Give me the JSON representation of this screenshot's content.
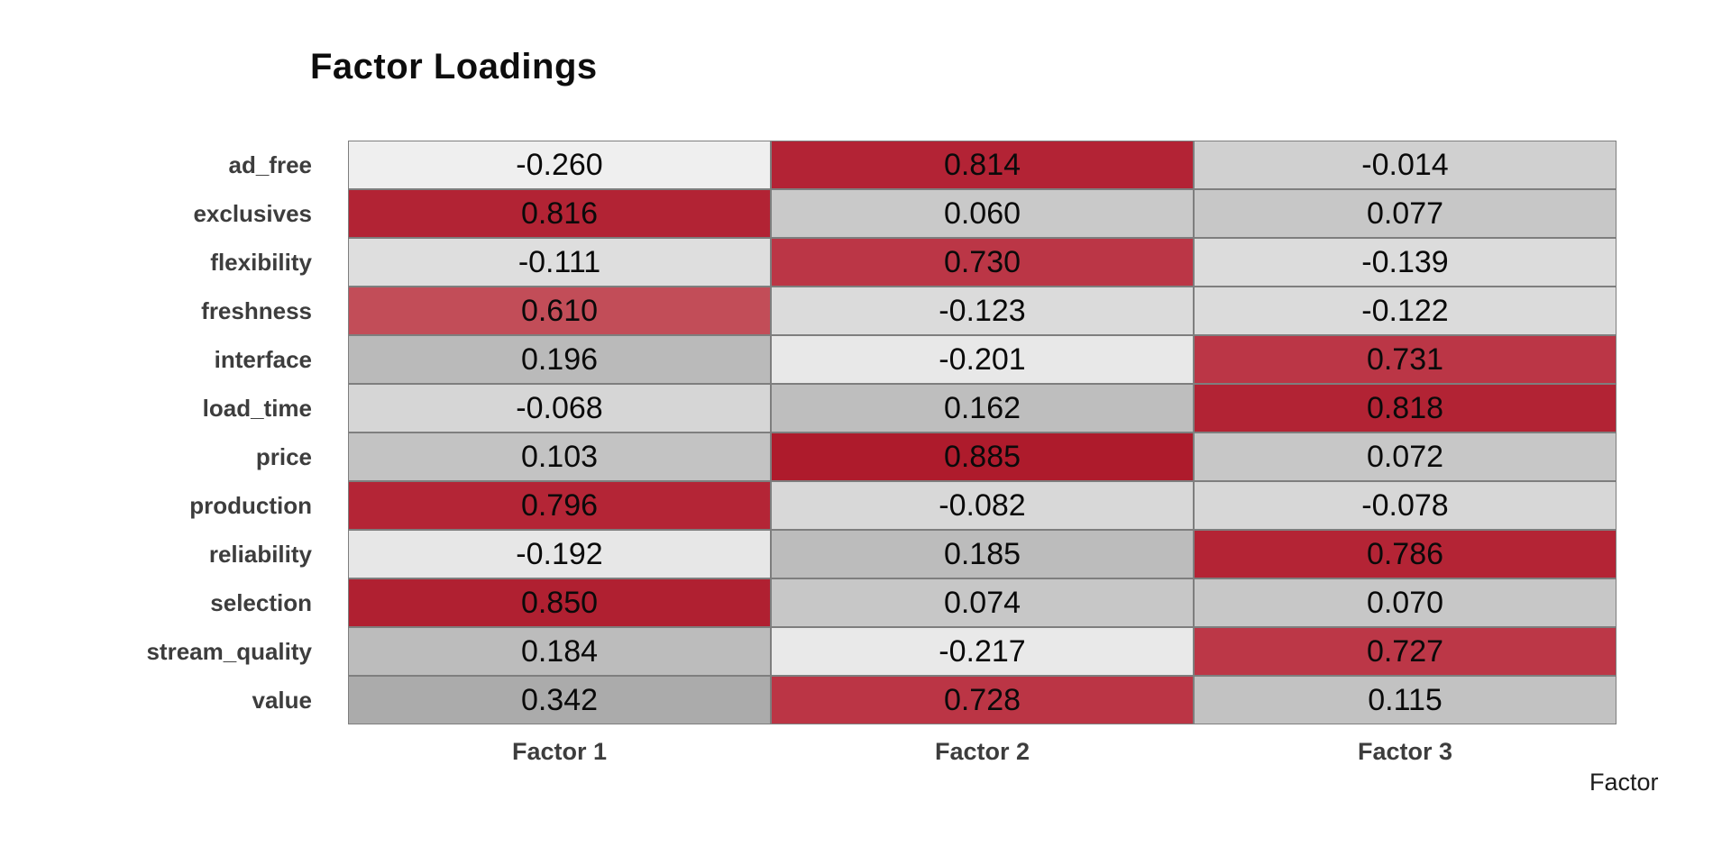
{
  "page": {
    "background": "#ffffff"
  },
  "chart_data": {
    "type": "heatmap",
    "title": "Factor Loadings",
    "xlabel": "Factor",
    "columns": [
      "Factor 1",
      "Factor 2",
      "Factor 3"
    ],
    "rows": [
      "ad_free",
      "exclusives",
      "flexibility",
      "freshness",
      "interface",
      "load_time",
      "price",
      "production",
      "reliability",
      "selection",
      "stream_quality",
      "value"
    ],
    "values": [
      [
        -0.26,
        0.814,
        -0.014
      ],
      [
        0.816,
        0.06,
        0.077
      ],
      [
        -0.111,
        0.73,
        -0.139
      ],
      [
        0.61,
        -0.123,
        -0.122
      ],
      [
        0.196,
        -0.201,
        0.731
      ],
      [
        -0.068,
        0.162,
        0.818
      ],
      [
        0.103,
        0.885,
        0.072
      ],
      [
        0.796,
        -0.082,
        -0.078
      ],
      [
        -0.192,
        0.185,
        0.786
      ],
      [
        0.85,
        0.074,
        0.07
      ],
      [
        0.184,
        -0.217,
        0.727
      ],
      [
        0.342,
        0.728,
        0.115
      ]
    ],
    "cell_colors": [
      [
        "#efefef",
        "#b32335",
        "#d0d0d0"
      ],
      [
        "#b22334",
        "#c9c9c9",
        "#c7c7c7"
      ],
      [
        "#dedede",
        "#bb3646",
        "#dcdcdc"
      ],
      [
        "#c24d58",
        "#dbdbdb",
        "#dbdbdb"
      ],
      [
        "#bababa",
        "#e8e8e8",
        "#bb3646"
      ],
      [
        "#d6d6d6",
        "#bebebe",
        "#b22334"
      ],
      [
        "#c3c3c3",
        "#ae1b2c",
        "#c7c7c7"
      ],
      [
        "#b42536",
        "#d8d8d8",
        "#d7d7d7"
      ],
      [
        "#e7e7e7",
        "#bcbcbc",
        "#b42435"
      ],
      [
        "#b02031",
        "#c7c7c7",
        "#c7c7c7"
      ],
      [
        "#bcbcbc",
        "#e9e9e9",
        "#bc3747"
      ],
      [
        "#ababab",
        "#bb3545",
        "#c2c2c2"
      ]
    ],
    "value_decimals": 3,
    "layout": {
      "legend": "none",
      "grid_line_color": "#7e7e7e",
      "high_loading_color": "#ae1b2c",
      "low_loading_color": "#efefef",
      "row_label_color": "#3d3d3d",
      "value_text_color": "#0a0a0a"
    }
  }
}
